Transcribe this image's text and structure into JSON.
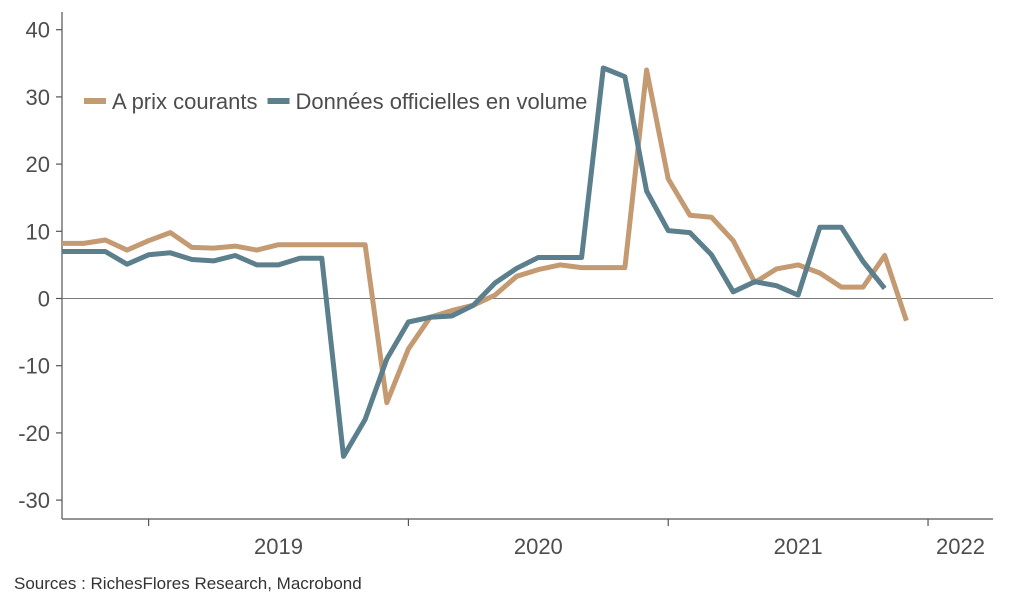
{
  "chart_data": {
    "type": "line",
    "y_ticks": [
      "40",
      "30",
      "20",
      "10",
      "0",
      "-10",
      "-20",
      "-30"
    ],
    "ylim": [
      -33,
      42
    ],
    "x_tick_labels": [
      "2019",
      "2020",
      "2021",
      "2022"
    ],
    "x_start": "2018-09",
    "x_end": "2022-04",
    "grid": false,
    "zero_line": true,
    "legend_position": "top-left",
    "series": [
      {
        "name": "A prix courants",
        "color": "#c49a72",
        "values": [
          [
            "2018-09",
            8.2
          ],
          [
            "2018-10",
            8.2
          ],
          [
            "2018-11",
            8.7
          ],
          [
            "2018-12",
            7.2
          ],
          [
            "2019-01",
            8.6
          ],
          [
            "2019-02",
            9.8
          ],
          [
            "2019-03",
            7.6
          ],
          [
            "2019-04",
            7.5
          ],
          [
            "2019-05",
            7.8
          ],
          [
            "2019-06",
            7.2
          ],
          [
            "2019-07",
            8.0
          ],
          [
            "2019-08",
            8.0
          ],
          [
            "2019-09",
            8.0
          ],
          [
            "2019-10",
            8.0
          ],
          [
            "2019-11",
            8.0
          ],
          [
            "2019-12",
            -15.5
          ],
          [
            "2020-01",
            -7.5
          ],
          [
            "2020-02",
            -2.8
          ],
          [
            "2020-03",
            -1.8
          ],
          [
            "2020-04",
            -1.0
          ],
          [
            "2020-05",
            0.5
          ],
          [
            "2020-06",
            3.3
          ],
          [
            "2020-07",
            4.3
          ],
          [
            "2020-08",
            5.0
          ],
          [
            "2020-09",
            4.6
          ],
          [
            "2020-10",
            4.6
          ],
          [
            "2020-11",
            4.6
          ],
          [
            "2020-12",
            34.0
          ],
          [
            "2021-01",
            17.8
          ],
          [
            "2021-02",
            12.4
          ],
          [
            "2021-03",
            12.1
          ],
          [
            "2021-04",
            8.6
          ],
          [
            "2021-05",
            2.4
          ],
          [
            "2021-06",
            4.4
          ],
          [
            "2021-07",
            5.0
          ],
          [
            "2021-08",
            3.8
          ],
          [
            "2021-09",
            1.7
          ],
          [
            "2021-10",
            1.7
          ],
          [
            "2021-11",
            6.4
          ],
          [
            "2021-12",
            -3.3
          ]
        ]
      },
      {
        "name": "Données officielles en volume",
        "color": "#5b7f8d",
        "values": [
          [
            "2018-09",
            7.0
          ],
          [
            "2018-10",
            7.0
          ],
          [
            "2018-11",
            7.0
          ],
          [
            "2018-12",
            5.1
          ],
          [
            "2019-01",
            6.5
          ],
          [
            "2019-02",
            6.8
          ],
          [
            "2019-03",
            5.8
          ],
          [
            "2019-04",
            5.6
          ],
          [
            "2019-05",
            6.4
          ],
          [
            "2019-06",
            5.0
          ],
          [
            "2019-07",
            5.0
          ],
          [
            "2019-08",
            6.0
          ],
          [
            "2019-09",
            6.0
          ],
          [
            "2019-10",
            -23.5
          ],
          [
            "2019-11",
            -18.0
          ],
          [
            "2019-12",
            -9.0
          ],
          [
            "2020-01",
            -3.5
          ],
          [
            "2020-02",
            -2.8
          ],
          [
            "2020-03",
            -2.6
          ],
          [
            "2020-04",
            -1.0
          ],
          [
            "2020-05",
            2.3
          ],
          [
            "2020-06",
            4.5
          ],
          [
            "2020-07",
            6.1
          ],
          [
            "2020-08",
            6.1
          ],
          [
            "2020-09",
            6.1
          ],
          [
            "2020-10",
            34.3
          ],
          [
            "2020-11",
            33.0
          ],
          [
            "2020-12",
            16.0
          ],
          [
            "2021-01",
            10.1
          ],
          [
            "2021-02",
            9.8
          ],
          [
            "2021-03",
            6.5
          ],
          [
            "2021-04",
            1.0
          ],
          [
            "2021-05",
            2.5
          ],
          [
            "2021-06",
            1.9
          ],
          [
            "2021-07",
            0.5
          ],
          [
            "2021-08",
            10.6
          ],
          [
            "2021-09",
            10.6
          ],
          [
            "2021-10",
            5.5
          ],
          [
            "2021-11",
            1.5
          ]
        ]
      }
    ]
  },
  "source_text": "Sources : RichesFlores Research, Macrobond"
}
